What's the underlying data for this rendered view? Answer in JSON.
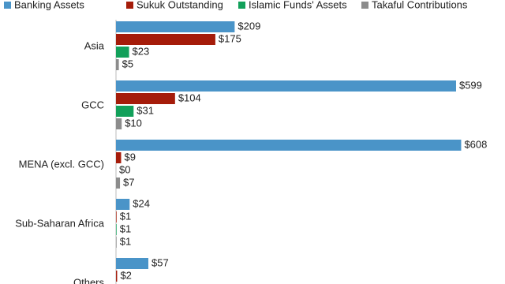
{
  "chart_data": {
    "type": "hbar",
    "categories": [
      "Asia",
      "GCC",
      "MENA (excl. GCC)",
      "Sub-Saharan Africa",
      "Others"
    ],
    "series": [
      {
        "name": "Banking Assets",
        "color": "#4a94c8",
        "values": [
          209,
          599,
          608,
          24,
          57
        ],
        "value_labels": [
          "$209",
          "$599",
          "$608",
          "$24",
          "$57"
        ]
      },
      {
        "name": "Sukuk Outstanding",
        "color": "#a51c0a",
        "values": [
          175,
          104,
          9,
          1,
          2
        ],
        "value_labels": [
          "$175",
          "$104",
          "$9",
          "$1",
          "$2"
        ]
      },
      {
        "name": "Islamic Funds' Assets",
        "color": "#12a05a",
        "values": [
          23,
          31,
          0,
          1,
          null
        ],
        "value_labels": [
          "$23",
          "$31",
          "$0",
          "$1",
          null
        ]
      },
      {
        "name": "Takaful Contributions",
        "color": "#8c8c8c",
        "values": [
          5,
          10,
          7,
          1,
          null
        ],
        "value_labels": [
          "$5",
          "$10",
          "$7",
          "$1",
          null
        ]
      }
    ]
  }
}
